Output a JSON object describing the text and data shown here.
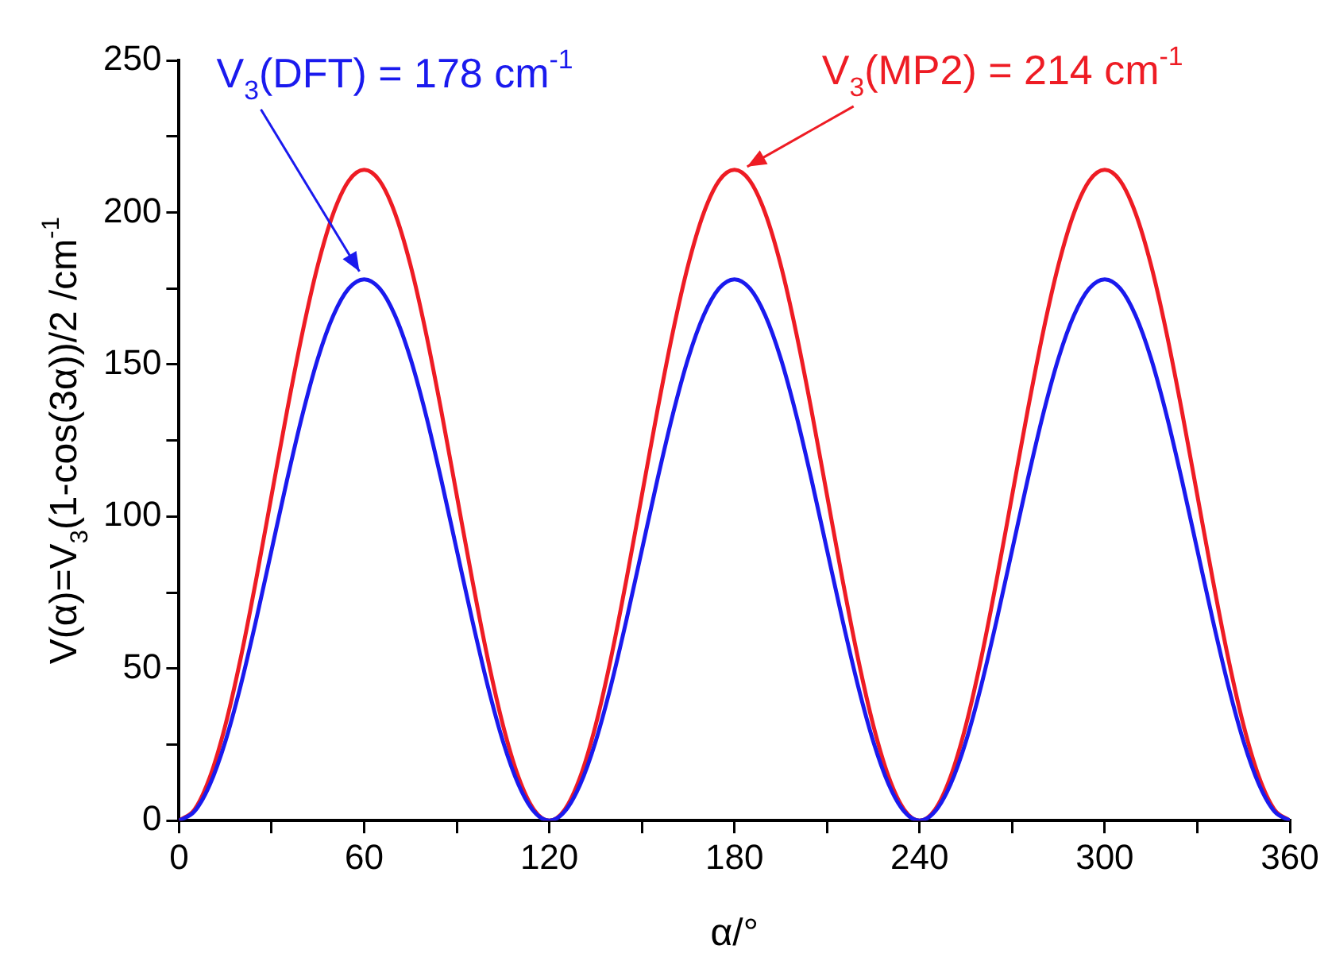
{
  "chart_data": {
    "type": "line",
    "xlabel": "α/°",
    "ylabel": "V(α)=V$_{3}$(1-cos(3α))/2 /cm$^{-1}$",
    "x": [
      0,
      5,
      10,
      15,
      20,
      25,
      30,
      35,
      40,
      45,
      50,
      55,
      60,
      65,
      70,
      75,
      80,
      85,
      90,
      95,
      100,
      105,
      110,
      115,
      120,
      125,
      130,
      135,
      140,
      145,
      150,
      155,
      160,
      165,
      170,
      175,
      180,
      185,
      190,
      195,
      200,
      205,
      210,
      215,
      220,
      225,
      230,
      235,
      240,
      245,
      250,
      255,
      260,
      265,
      270,
      275,
      280,
      285,
      290,
      295,
      300,
      305,
      310,
      315,
      320,
      325,
      330,
      335,
      340,
      345,
      350,
      355,
      360
    ],
    "series": [
      {
        "color": "#1a1aee",
        "values": [
          0,
          3,
          11.9,
          26,
          44.5,
          66,
          89,
          112,
          133.5,
          152,
          166.1,
          175,
          178,
          175,
          166.1,
          152,
          133.5,
          112,
          89,
          66,
          44.5,
          26,
          11.9,
          3,
          0,
          3,
          11.9,
          26,
          44.5,
          66,
          89,
          112,
          133.5,
          152,
          166.1,
          175,
          178,
          175,
          166.1,
          152,
          133.5,
          112,
          89,
          66,
          44.5,
          26,
          11.9,
          3,
          0,
          3,
          11.9,
          26,
          44.5,
          66,
          89,
          112,
          133.5,
          152,
          166.1,
          175,
          178,
          175,
          166.1,
          152,
          133.5,
          112,
          89,
          66,
          44.5,
          26,
          11.9,
          3,
          0
        ]
      },
      {
        "color": "#ee1c24",
        "values": [
          0,
          3.6,
          14.3,
          31.3,
          53.5,
          79.3,
          107,
          134.7,
          160.5,
          182.7,
          199.7,
          210.4,
          214,
          210.4,
          199.7,
          182.7,
          160.5,
          134.7,
          107,
          79.3,
          53.5,
          31.3,
          14.3,
          3.6,
          0,
          3.6,
          14.3,
          31.3,
          53.5,
          79.3,
          107,
          134.7,
          160.5,
          182.7,
          199.7,
          210.4,
          214,
          210.4,
          199.7,
          182.7,
          160.5,
          134.7,
          107,
          79.3,
          53.5,
          31.3,
          14.3,
          3.6,
          0,
          3.6,
          14.3,
          31.3,
          53.5,
          79.3,
          107,
          134.7,
          160.5,
          182.7,
          199.7,
          210.4,
          214,
          210.4,
          199.7,
          182.7,
          160.5,
          134.7,
          107,
          79.3,
          53.5,
          31.3,
          14.3,
          3.6,
          0
        ]
      }
    ],
    "annotations": [
      {
        "text": "V$_{3}$(DFT) = 178 cm$^{-1}$",
        "x": 60,
        "y": 178
      },
      {
        "text": "V$_{3}$(MP2) = 214 cm$^{-1}$",
        "x": 180,
        "y": 214
      }
    ],
    "xlim": [
      0,
      360
    ],
    "xticks": [
      0,
      {
        "value": 30,
        "label": null
      },
      60,
      {
        "value": 90,
        "label": null
      },
      120,
      {
        "value": 150,
        "label": null
      },
      180,
      {
        "value": 210,
        "label": null
      },
      240,
      {
        "value": 270,
        "label": null
      },
      300,
      {
        "value": 330,
        "label": null
      },
      360
    ],
    "ylim": [
      0,
      250
    ],
    "yticks": [
      0,
      {
        "value": 25,
        "label": null
      },
      50,
      {
        "value": 75,
        "label": null
      },
      100,
      {
        "value": 125,
        "label": null
      },
      150,
      {
        "value": 175,
        "label": null
      },
      200,
      {
        "value": 225,
        "label": null
      },
      250
    ],
    "grid": false,
    "legend": false,
    "marker": "none",
    "line_style": "solid"
  }
}
